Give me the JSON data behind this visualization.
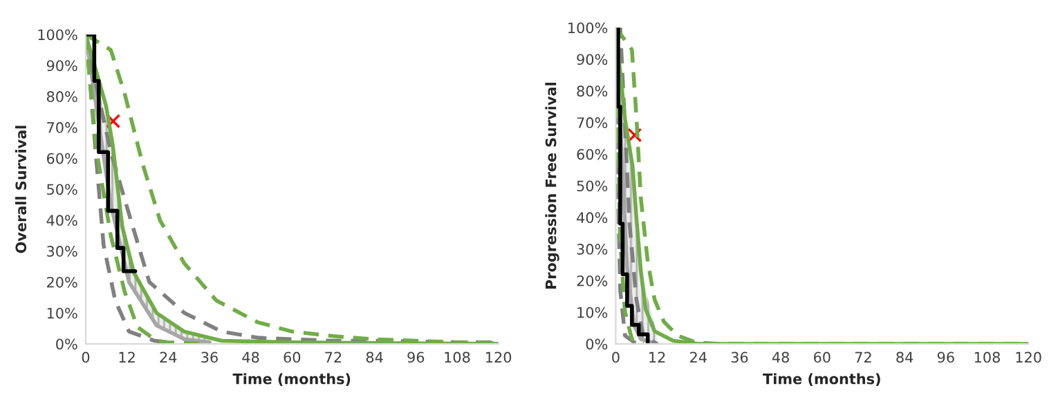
{
  "chart_data": [
    {
      "type": "line",
      "xlabel": "Time (months)",
      "ylabel": "Overall Survival",
      "xlim": [
        0,
        120
      ],
      "ylim": [
        0,
        100
      ],
      "xticks": [
        0,
        12,
        24,
        36,
        48,
        60,
        72,
        84,
        96,
        108,
        120
      ],
      "yticks": [
        {
          "value": 0,
          "label": "0%"
        },
        {
          "value": 10,
          "label": "10%"
        },
        {
          "value": 20,
          "label": "20%"
        },
        {
          "value": 30,
          "label": "30%"
        },
        {
          "value": 40,
          "label": "40%"
        },
        {
          "value": 50,
          "label": "50%"
        },
        {
          "value": 60,
          "label": "60%"
        },
        {
          "value": 70,
          "label": "70%"
        },
        {
          "value": 80,
          "label": "80%"
        },
        {
          "value": 90,
          "label": "90%"
        },
        {
          "value": 100,
          "label": "100%"
        }
      ],
      "grid": false,
      "legend": false,
      "series": [
        {
          "color": "#a6a6a6",
          "line_style": "solid",
          "x": [
            0,
            7.3,
            12.6,
            20.6,
            28.7,
            36
          ],
          "values": [
            100,
            45,
            20,
            6,
            1.5,
            0.5
          ],
          "lower": [
            100,
            45,
            20,
            6,
            1.5,
            0.5
          ],
          "upper": [
            100,
            66,
            28,
            10,
            4,
            1.5
          ]
        },
        {
          "color": "#808080",
          "line_style": "dashed",
          "x": [
            0,
            0.5,
            3.2,
            5.2,
            8.6,
            12.6,
            20,
            24
          ],
          "values": [
            100,
            95,
            58,
            32,
            14,
            4,
            1,
            0.5
          ]
        },
        {
          "color": "#808080",
          "line_style": "dashed",
          "x": [
            0,
            0.8,
            7.3,
            12.6,
            18.5,
            28.7,
            39.5,
            50,
            60,
            72,
            84,
            96,
            108,
            120
          ],
          "values": [
            100,
            95,
            62,
            42,
            20,
            10,
            4,
            2,
            1.5,
            1,
            1,
            0.8,
            0.5,
            0.5
          ]
        },
        {
          "color": "#70ad47",
          "line_style": "dashed",
          "x": [
            0,
            7.3,
            11.3,
            16.6,
            21.6,
            28.7,
            38,
            50,
            60,
            72,
            84,
            96,
            108,
            120
          ],
          "values": [
            100,
            95,
            81,
            58,
            40,
            26,
            14,
            7,
            4,
            2.5,
            1.5,
            1,
            0.5,
            0.3
          ]
        },
        {
          "color": "#70ad47",
          "line_style": "dashed",
          "x": [
            0,
            3.2,
            7.3,
            11.3,
            15,
            20.6,
            24,
            36
          ],
          "values": [
            100,
            62,
            35,
            17,
            5.5,
            1,
            0.5,
            0
          ]
        },
        {
          "color": "#70ad47",
          "line_style": "solid",
          "x": [
            0,
            5.9,
            7.9,
            10.6,
            14,
            20.6,
            28.6,
            39.5,
            60,
            120
          ],
          "values": [
            100,
            77,
            64,
            38,
            23,
            10,
            4,
            1,
            0.5,
            0
          ]
        },
        {
          "type": "step",
          "color": "#000000",
          "line_style": "solid",
          "x": [
            0,
            2.5,
            3.8,
            6.5,
            9.2,
            11,
            14.4
          ],
          "values": [
            100,
            85,
            62,
            43,
            31,
            23.5,
            23.5
          ]
        },
        {
          "type": "scatter",
          "color": "#ff0000",
          "marker": "cross",
          "x": [
            8
          ],
          "values": [
            72
          ]
        }
      ]
    },
    {
      "type": "line",
      "xlabel": "Time (months)",
      "ylabel": "Progression Free Survival",
      "xlim": [
        0,
        120
      ],
      "ylim": [
        0,
        100
      ],
      "xticks": [
        0,
        12,
        24,
        36,
        48,
        60,
        72,
        84,
        96,
        108,
        120
      ],
      "yticks": [
        {
          "value": 0,
          "label": "0%"
        },
        {
          "value": 10,
          "label": "10%"
        },
        {
          "value": 20,
          "label": "20%"
        },
        {
          "value": 30,
          "label": "30%"
        },
        {
          "value": 40,
          "label": "40%"
        },
        {
          "value": 50,
          "label": "50%"
        },
        {
          "value": 60,
          "label": "60%"
        },
        {
          "value": 70,
          "label": "70%"
        },
        {
          "value": 80,
          "label": "80%"
        },
        {
          "value": 90,
          "label": "90%"
        },
        {
          "value": 100,
          "label": "100%"
        }
      ],
      "grid": false,
      "legend": false,
      "series": [
        {
          "color": "#a6a6a6",
          "line_style": "solid",
          "x": [
            0,
            2,
            3.3,
            5.3,
            7.3,
            12
          ],
          "values": [
            100,
            53,
            24,
            6,
            1.5,
            0
          ],
          "lower": [
            100,
            53,
            24,
            6,
            1.5,
            0
          ],
          "upper": [
            100,
            76,
            67,
            50,
            23,
            3
          ]
        },
        {
          "color": "#808080",
          "line_style": "dashed",
          "x": [
            0,
            1.3,
            2.7,
            4,
            6,
            8,
            12
          ],
          "values": [
            100,
            100,
            68,
            38,
            14,
            2.6,
            0
          ]
        },
        {
          "color": "#808080",
          "line_style": "dashed",
          "x": [
            0,
            0.7,
            1.3,
            2.7,
            6
          ],
          "values": [
            90,
            46,
            17,
            2.6,
            0
          ]
        },
        {
          "color": "#70ad47",
          "line_style": "dashed",
          "x": [
            0,
            4.7,
            6,
            7.3,
            9.3,
            11.3,
            14,
            18,
            23.3,
            30,
            120
          ],
          "values": [
            100,
            93,
            72,
            46,
            26,
            14,
            7,
            2.6,
            0.5,
            0,
            0
          ]
        },
        {
          "color": "#70ad47",
          "line_style": "dashed",
          "x": [
            0,
            0.7,
            1.3,
            2.7,
            4.7,
            8
          ],
          "values": [
            100,
            61,
            32,
            10,
            1.5,
            0
          ]
        },
        {
          "color": "#70ad47",
          "line_style": "solid",
          "x": [
            0,
            2.7,
            4.9,
            6,
            7.3,
            8.7,
            11.3,
            16.7,
            24,
            120
          ],
          "values": [
            100,
            71,
            56,
            40,
            23,
            11,
            4,
            1,
            0,
            0
          ]
        },
        {
          "type": "step",
          "color": "#000000",
          "line_style": "solid",
          "x": [
            0,
            0.7,
            1.3,
            2,
            3.3,
            4.7,
            6.7,
            9.3
          ],
          "values": [
            100,
            75,
            38,
            22,
            12,
            6,
            3,
            0.5
          ]
        },
        {
          "type": "scatter",
          "color": "#ff0000",
          "marker": "cross",
          "x": [
            5.5
          ],
          "values": [
            66
          ]
        }
      ]
    }
  ]
}
